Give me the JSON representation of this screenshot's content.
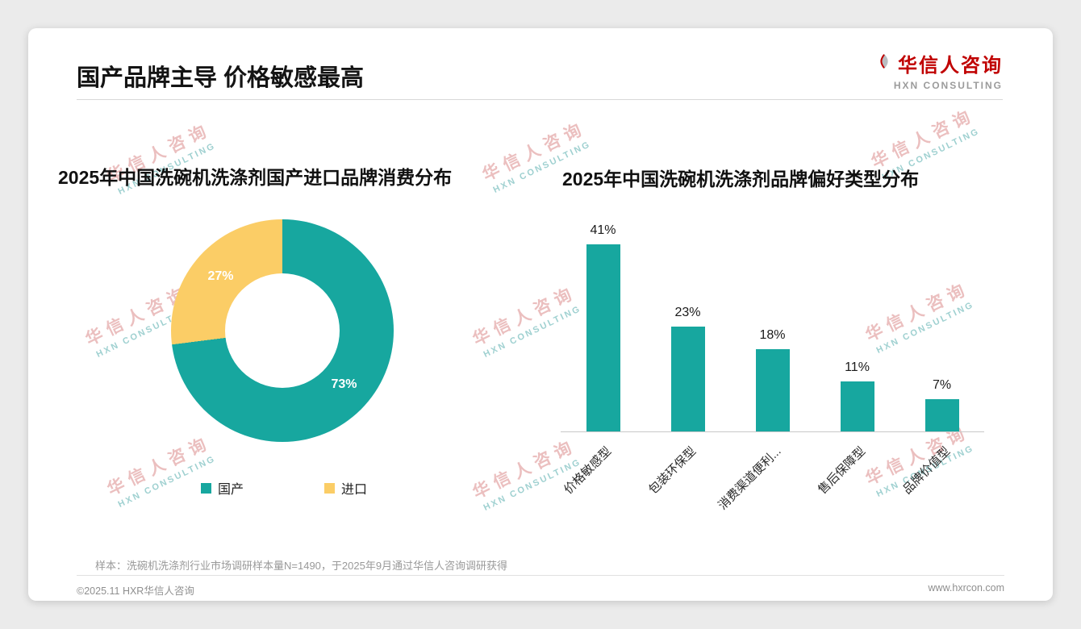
{
  "page": {
    "title": "国产品牌主导 价格敏感最高",
    "logo": {
      "name": "华信人咨询",
      "subtitle": "HXN CONSULTING"
    },
    "watermark": {
      "line1": "华信人咨询",
      "line2": "HXN CONSULTING"
    },
    "footnote": "样本：洗碗机洗涤剂行业市场调研样本量N=1490，于2025年9月通过华信人咨询调研获得",
    "footer_left": "©2025.11 HXR华信人咨询",
    "footer_right": "www.hxrcon.com"
  },
  "colors": {
    "teal": "#17A79F",
    "yellow": "#FBCD66",
    "brand_red": "#C00000"
  },
  "chart_data": [
    {
      "type": "pie",
      "donut": true,
      "title": "2025年中国洗碗机洗涤剂国产进口品牌消费分布",
      "labels": [
        "国产",
        "进口"
      ],
      "values": [
        73,
        27
      ],
      "value_labels": [
        "73%",
        "27%"
      ],
      "colors": [
        "#17A79F",
        "#FBCD66"
      ],
      "legend_position": "bottom"
    },
    {
      "type": "bar",
      "title": "2025年中国洗碗机洗涤剂品牌偏好类型分布",
      "categories": [
        "价格敏感型",
        "包装环保型",
        "消费渠道便利...",
        "售后保障型",
        "品牌价值型"
      ],
      "values": [
        41,
        23,
        18,
        11,
        7
      ],
      "value_labels": [
        "41%",
        "23%",
        "18%",
        "11%",
        "7%"
      ],
      "bar_color": "#17A79F",
      "xlabel": "",
      "ylabel": "",
      "ylim": [
        0,
        45
      ],
      "grid": false,
      "legend_position": "none"
    }
  ]
}
